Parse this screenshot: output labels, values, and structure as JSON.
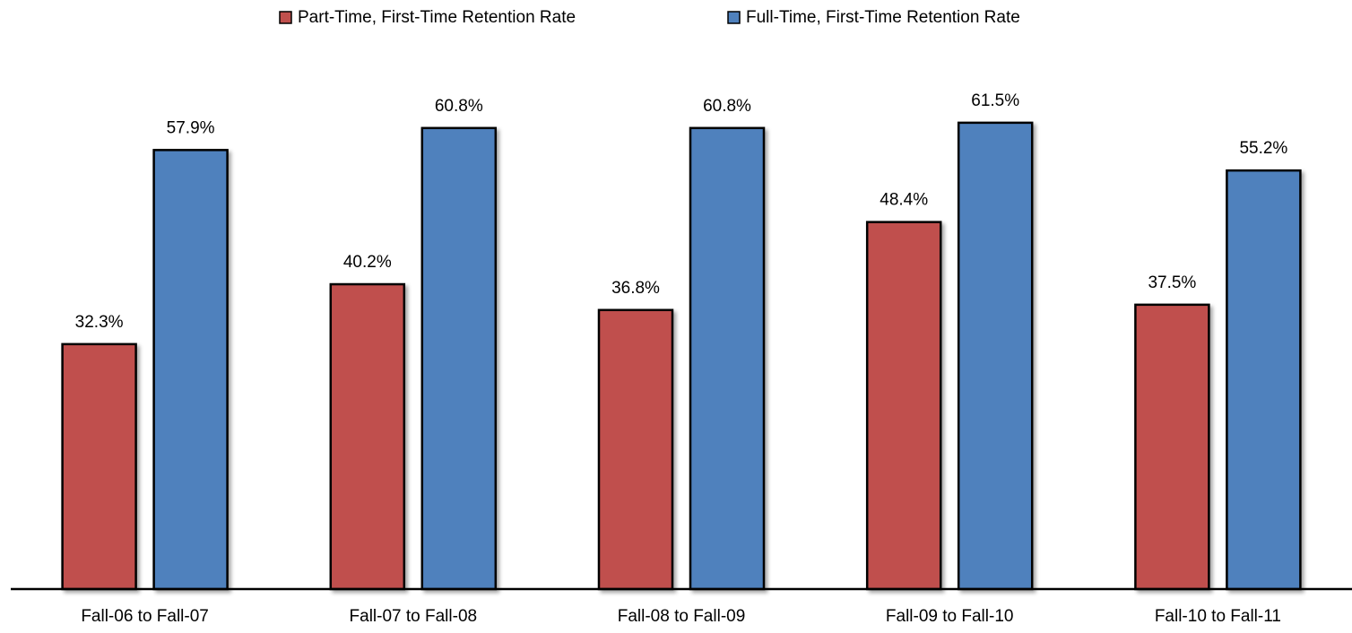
{
  "chart_data": {
    "type": "bar",
    "categories": [
      "Fall-06 to Fall-07",
      "Fall-07 to Fall-08",
      "Fall-08 to Fall-09",
      "Fall-09 to Fall-10",
      "Fall-10 to Fall-11"
    ],
    "series": [
      {
        "name": "Part-Time, First-Time Retention Rate",
        "color": "#c0504d",
        "values": [
          32.3,
          40.2,
          36.8,
          48.4,
          37.5
        ],
        "value_labels": [
          "32.3%",
          "40.2%",
          "36.8%",
          "48.4%",
          "37.5%"
        ]
      },
      {
        "name": "Full-Time, First-Time Retention Rate",
        "color": "#4f81bd",
        "values": [
          57.9,
          60.8,
          60.8,
          61.5,
          55.2
        ],
        "value_labels": [
          "57.9%",
          "60.8%",
          "60.8%",
          "61.5%",
          "55.2%"
        ]
      }
    ],
    "ylim": [
      0,
      70
    ],
    "legend": "top"
  }
}
